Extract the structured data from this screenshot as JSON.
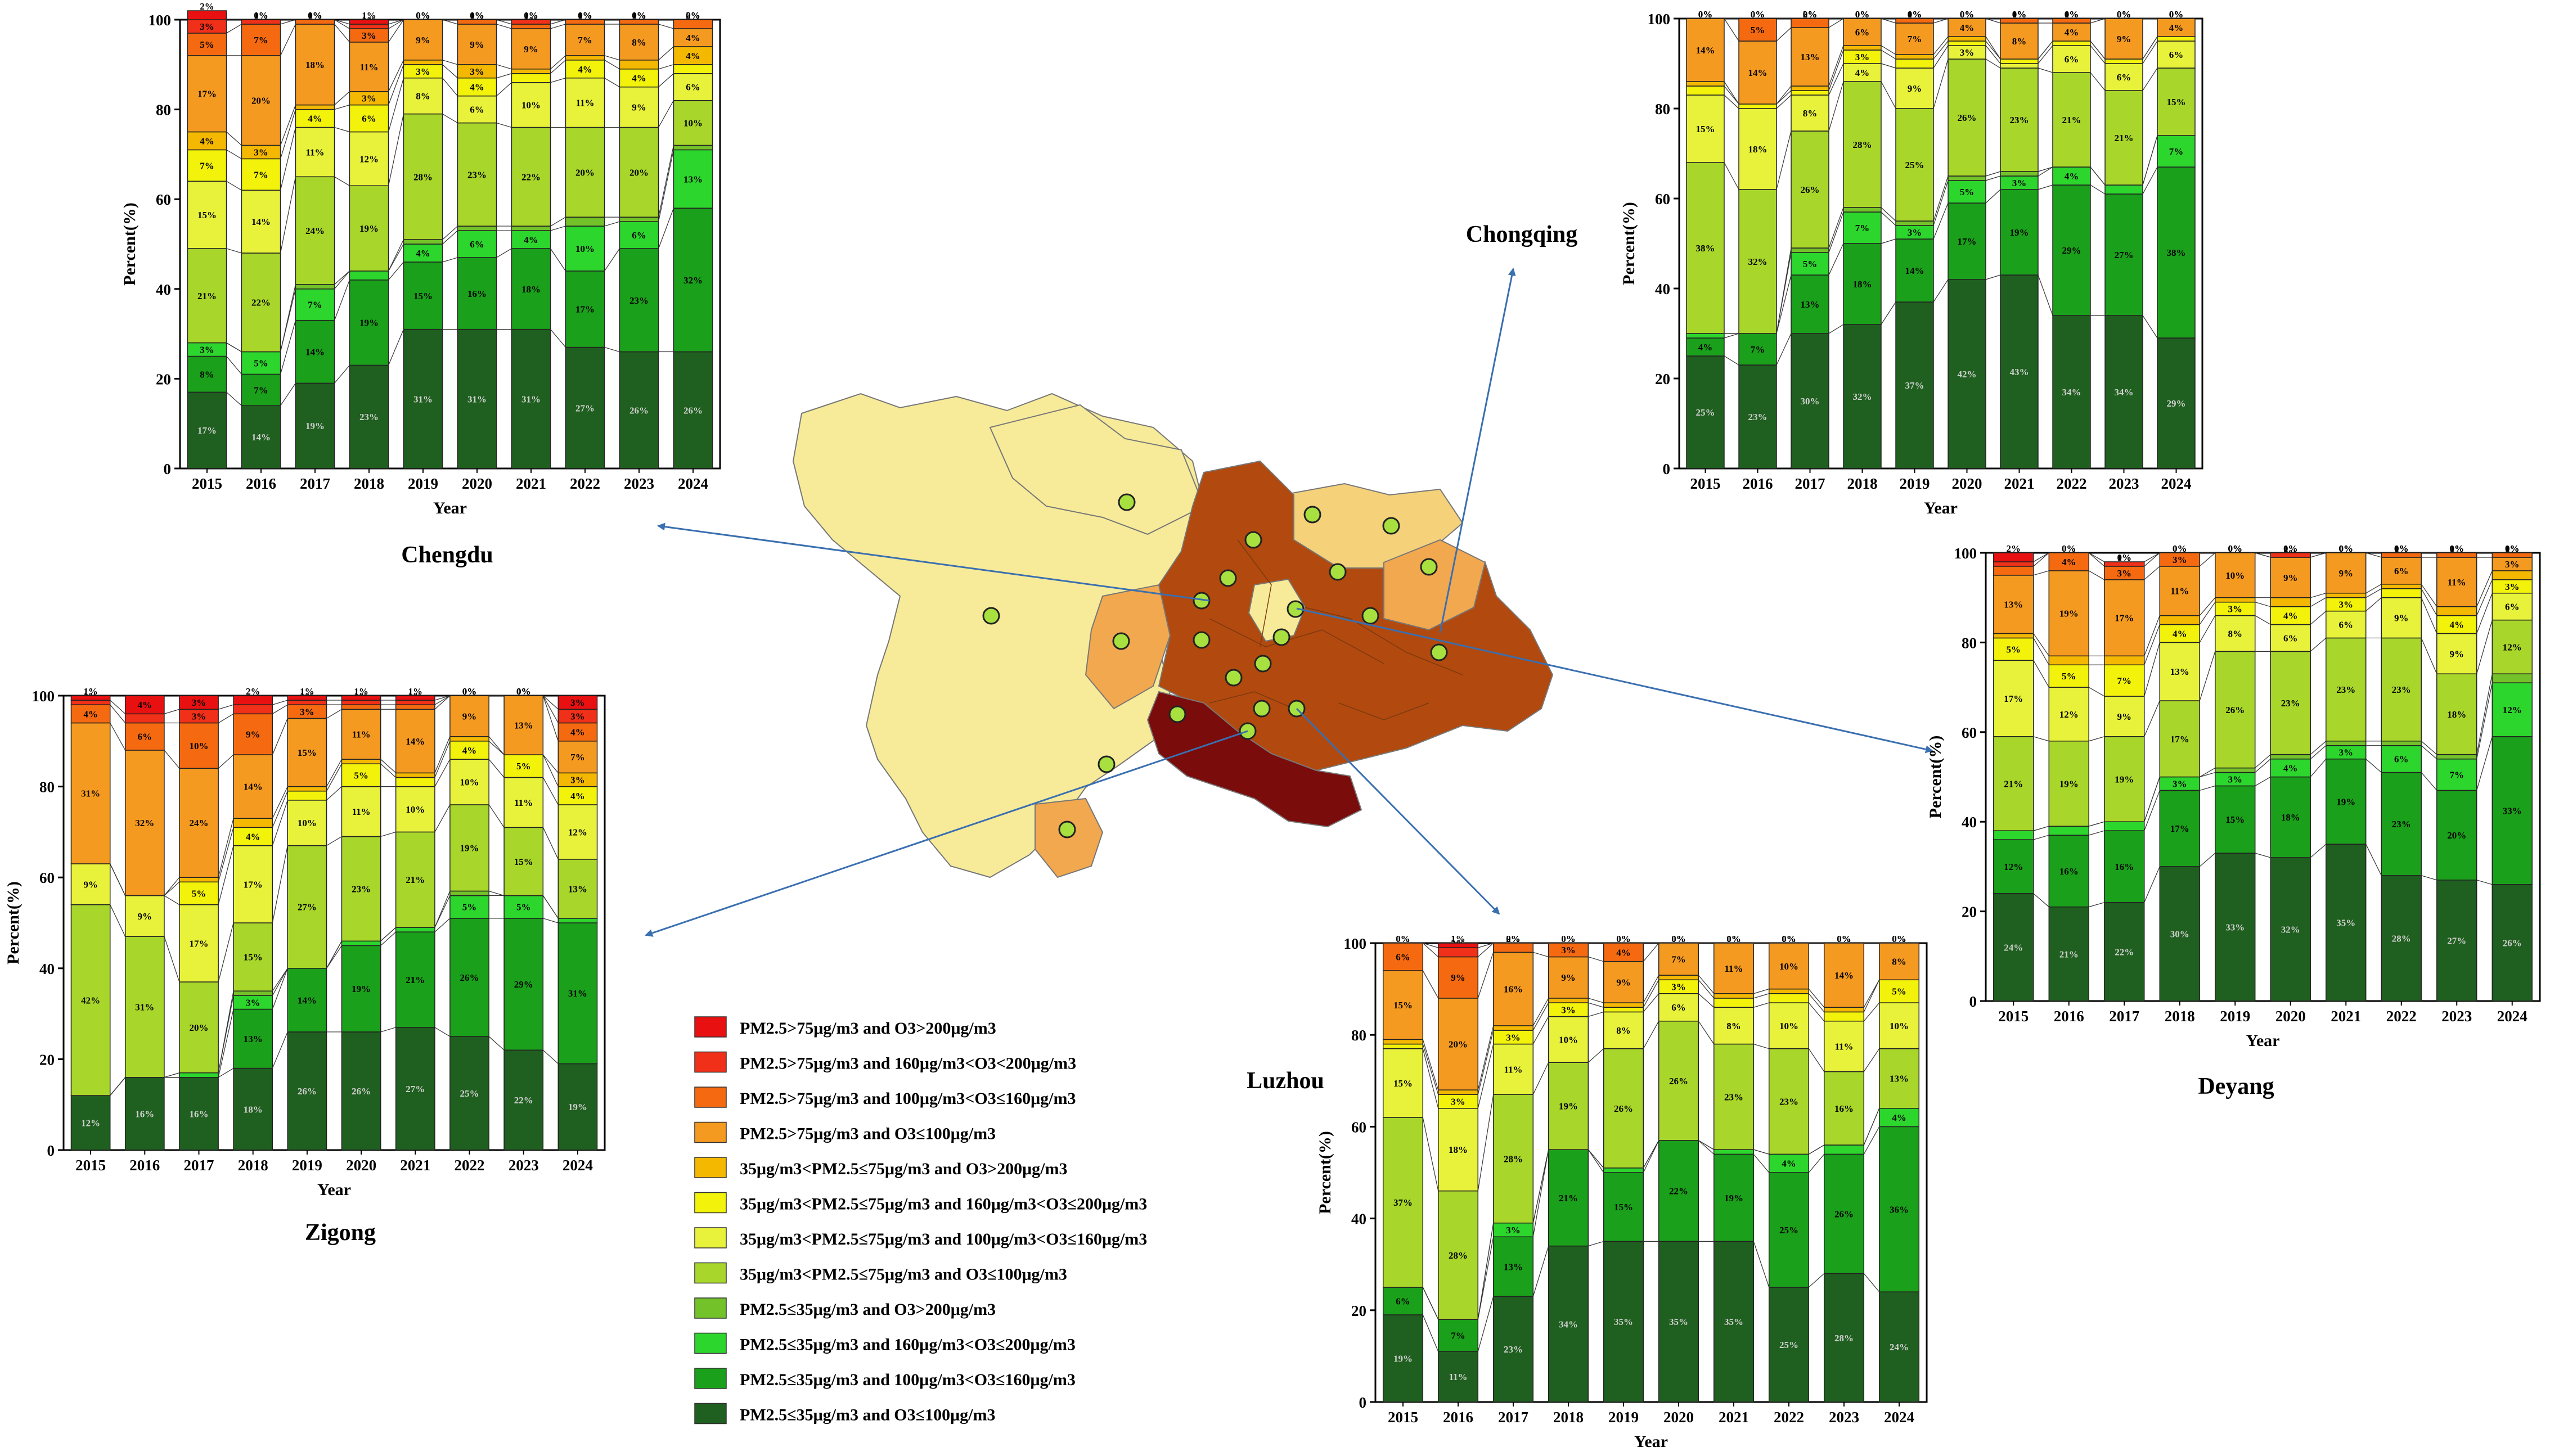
{
  "colors": [
    "#1f5f1f",
    "#1aa01a",
    "#2cd62c",
    "#74c22a",
    "#a8d62a",
    "#e8f23a",
    "#f2f20a",
    "#f5b800",
    "#f59a20",
    "#f56a10",
    "#f03018",
    "#e81010"
  ],
  "legend": [
    "PM2.5>75μg/m3 and O3>200μg/m3",
    "PM2.5>75μg/m3 and 160μg/m3<O3<200μg/m3",
    "PM2.5>75μg/m3 and 100μg/m3<O3≤160μg/m3",
    "PM2.5>75μg/m3 and O3≤100μg/m3",
    "35μg/m3<PM2.5≤75μg/m3 and O3>200μg/m3",
    "35μg/m3<PM2.5≤75μg/m3 and 160μg/m3<O3≤200μg/m3",
    "35μg/m3<PM2.5≤75μg/m3 and 100μg/m3<O3≤160μg/m3",
    "35μg/m3<PM2.5≤75μg/m3 and O3≤100μg/m3",
    "PM2.5≤35μg/m3 and O3>200μg/m3",
    "PM2.5≤35μg/m3 and 160μg/m3<O3≤200μg/m3",
    "PM2.5≤35μg/m3 and 100μg/m3<O3≤160μg/m3",
    "PM2.5≤35μg/m3 and O3≤100μg/m3"
  ],
  "map": {
    "region_colors": [
      "#f7eb9a",
      "#f5d27a",
      "#f2a84e",
      "#b2490e",
      "#7a0c0c"
    ]
  },
  "chart_data": [
    {
      "type": "bar",
      "stacked": true,
      "city": "Chengdu",
      "xlabel": "Year",
      "ylabel": "Percent(%)",
      "ylim": [
        0,
        100
      ],
      "yticks": [
        "0",
        "20",
        "40",
        "60",
        "80",
        "100"
      ],
      "categories": [
        "2015",
        "2016",
        "2017",
        "2018",
        "2019",
        "2020",
        "2021",
        "2022",
        "2023",
        "2024"
      ],
      "series_note": "values listed bottom-to-top in legend order reversed (PM2.5≤35 & O3≤100 first)",
      "values": [
        [
          17,
          8,
          3,
          0,
          21,
          15,
          7,
          4,
          17,
          5,
          3,
          2
        ],
        [
          14,
          7,
          5,
          0,
          22,
          14,
          7,
          3,
          20,
          7,
          1,
          0
        ],
        [
          19,
          14,
          7,
          1,
          24,
          11,
          4,
          1,
          18,
          1,
          0,
          0
        ],
        [
          23,
          19,
          2,
          0,
          19,
          12,
          6,
          3,
          11,
          3,
          1,
          1
        ],
        [
          31,
          15,
          4,
          1,
          28,
          8,
          3,
          1,
          9,
          0,
          0,
          0
        ],
        [
          31,
          16,
          6,
          1,
          23,
          6,
          4,
          3,
          9,
          1,
          0,
          0
        ],
        [
          31,
          18,
          4,
          1,
          22,
          10,
          2,
          1,
          9,
          1,
          1,
          0
        ],
        [
          27,
          17,
          10,
          2,
          20,
          11,
          4,
          1,
          7,
          1,
          0,
          0
        ],
        [
          26,
          23,
          6,
          1,
          20,
          9,
          4,
          2,
          8,
          1,
          0,
          0
        ],
        [
          26,
          32,
          13,
          1,
          10,
          6,
          2,
          4,
          4,
          2,
          0,
          0
        ]
      ]
    },
    {
      "type": "bar",
      "stacked": true,
      "city": "Chongqing",
      "xlabel": "Year",
      "ylabel": "Percent(%)",
      "ylim": [
        0,
        100
      ],
      "yticks": [
        "0",
        "20",
        "40",
        "60",
        "80",
        "100"
      ],
      "categories": [
        "2015",
        "2016",
        "2017",
        "2018",
        "2019",
        "2020",
        "2021",
        "2022",
        "2023",
        "2024"
      ],
      "values": [
        [
          25,
          4,
          1,
          0,
          38,
          15,
          2,
          1,
          14,
          0,
          0,
          0
        ],
        [
          23,
          7,
          0,
          0,
          32,
          18,
          1,
          0,
          14,
          5,
          0,
          0
        ],
        [
          30,
          13,
          5,
          1,
          26,
          8,
          1,
          1,
          13,
          2,
          0,
          0
        ],
        [
          32,
          18,
          7,
          1,
          28,
          4,
          3,
          1,
          6,
          0,
          0,
          0
        ],
        [
          37,
          14,
          3,
          1,
          25,
          9,
          2,
          1,
          7,
          1,
          0,
          0
        ],
        [
          42,
          17,
          5,
          1,
          26,
          3,
          1,
          1,
          4,
          0,
          0,
          0
        ],
        [
          43,
          19,
          3,
          1,
          23,
          1,
          1,
          0,
          8,
          1,
          0,
          0
        ],
        [
          34,
          29,
          4,
          0,
          21,
          6,
          1,
          0,
          4,
          1,
          0,
          0
        ],
        [
          34,
          27,
          2,
          0,
          21,
          6,
          1,
          0,
          9,
          0,
          0,
          0
        ],
        [
          29,
          38,
          7,
          0,
          15,
          6,
          1,
          0,
          4,
          0,
          0,
          0
        ]
      ]
    },
    {
      "type": "bar",
      "stacked": true,
      "city": "Zigong",
      "xlabel": "Year",
      "ylabel": "Percent(%)",
      "ylim": [
        0,
        100
      ],
      "yticks": [
        "0",
        "20",
        "40",
        "60",
        "80",
        "100"
      ],
      "categories": [
        "2015",
        "2016",
        "2017",
        "2018",
        "2019",
        "2020",
        "2021",
        "2022",
        "2023",
        "2024"
      ],
      "values": [
        [
          12,
          0,
          0,
          0,
          42,
          9,
          0,
          0,
          31,
          4,
          1,
          1
        ],
        [
          16,
          0,
          0,
          0,
          31,
          9,
          0,
          0,
          32,
          6,
          2,
          4
        ],
        [
          16,
          0,
          1,
          0,
          20,
          17,
          5,
          1,
          24,
          10,
          3,
          3
        ],
        [
          18,
          13,
          3,
          1,
          15,
          17,
          4,
          2,
          14,
          9,
          2,
          2
        ],
        [
          26,
          14,
          0,
          0,
          27,
          10,
          2,
          1,
          15,
          3,
          1,
          1
        ],
        [
          26,
          19,
          1,
          0,
          23,
          11,
          5,
          1,
          11,
          1,
          1,
          1
        ],
        [
          27,
          21,
          1,
          0,
          21,
          10,
          2,
          1,
          14,
          1,
          1,
          1
        ],
        [
          25,
          26,
          5,
          1,
          19,
          10,
          4,
          1,
          9,
          0,
          0,
          0
        ],
        [
          22,
          29,
          5,
          0,
          15,
          11,
          5,
          0,
          13,
          0,
          0,
          0
        ],
        [
          19,
          31,
          1,
          0,
          13,
          12,
          4,
          3,
          7,
          4,
          3,
          3
        ]
      ]
    },
    {
      "type": "bar",
      "stacked": true,
      "city": "Luzhou",
      "xlabel": "Year",
      "ylabel": "Percent(%)",
      "ylim": [
        0,
        100
      ],
      "yticks": [
        "0",
        "20",
        "40",
        "60",
        "80",
        "100"
      ],
      "categories": [
        "2015",
        "2016",
        "2017",
        "2018",
        "2019",
        "2020",
        "2021",
        "2022",
        "2023",
        "2024"
      ],
      "values": [
        [
          19,
          6,
          0,
          0,
          37,
          15,
          1,
          1,
          15,
          6,
          0,
          0
        ],
        [
          11,
          7,
          0,
          0,
          28,
          18,
          3,
          1,
          20,
          9,
          2,
          1
        ],
        [
          23,
          13,
          3,
          0,
          28,
          11,
          3,
          1,
          16,
          2,
          0,
          0
        ],
        [
          34,
          21,
          0,
          0,
          19,
          10,
          3,
          1,
          9,
          3,
          0,
          0
        ],
        [
          35,
          15,
          1,
          0,
          26,
          8,
          1,
          1,
          9,
          4,
          0,
          0
        ],
        [
          35,
          22,
          0,
          0,
          26,
          6,
          3,
          1,
          7,
          0,
          0,
          0
        ],
        [
          35,
          19,
          1,
          0,
          23,
          8,
          2,
          1,
          11,
          0,
          0,
          0
        ],
        [
          25,
          25,
          4,
          0,
          23,
          10,
          2,
          1,
          10,
          0,
          0,
          0
        ],
        [
          28,
          26,
          2,
          0,
          16,
          11,
          2,
          1,
          14,
          0,
          0,
          0
        ],
        [
          24,
          36,
          4,
          0,
          13,
          10,
          5,
          0,
          8,
          0,
          0,
          0
        ]
      ]
    },
    {
      "type": "bar",
      "stacked": true,
      "city": "Deyang",
      "xlabel": "Year",
      "ylabel": "Percent(%)",
      "ylim": [
        0,
        100
      ],
      "yticks": [
        "0",
        "20",
        "40",
        "60",
        "80",
        "100"
      ],
      "categories": [
        "2015",
        "2016",
        "2017",
        "2018",
        "2019",
        "2020",
        "2021",
        "2022",
        "2023",
        "2024"
      ],
      "values": [
        [
          24,
          12,
          2,
          0,
          21,
          17,
          5,
          1,
          13,
          2,
          1,
          2
        ],
        [
          21,
          16,
          2,
          0,
          19,
          12,
          5,
          2,
          19,
          4,
          0,
          0
        ],
        [
          22,
          16,
          2,
          0,
          19,
          9,
          7,
          2,
          17,
          3,
          1,
          0
        ],
        [
          30,
          17,
          3,
          0,
          17,
          13,
          4,
          2,
          11,
          3,
          0,
          0
        ],
        [
          33,
          15,
          3,
          1,
          26,
          8,
          3,
          1,
          10,
          0,
          0,
          0
        ],
        [
          32,
          18,
          4,
          1,
          23,
          6,
          4,
          2,
          9,
          0,
          1,
          0
        ],
        [
          35,
          19,
          3,
          1,
          23,
          6,
          3,
          1,
          9,
          0,
          0,
          0
        ],
        [
          28,
          23,
          6,
          1,
          23,
          9,
          2,
          1,
          6,
          1,
          0,
          0
        ],
        [
          27,
          20,
          7,
          1,
          18,
          9,
          4,
          2,
          11,
          1,
          0,
          0
        ],
        [
          26,
          33,
          12,
          2,
          12,
          6,
          3,
          2,
          3,
          1,
          0,
          0
        ]
      ]
    }
  ]
}
